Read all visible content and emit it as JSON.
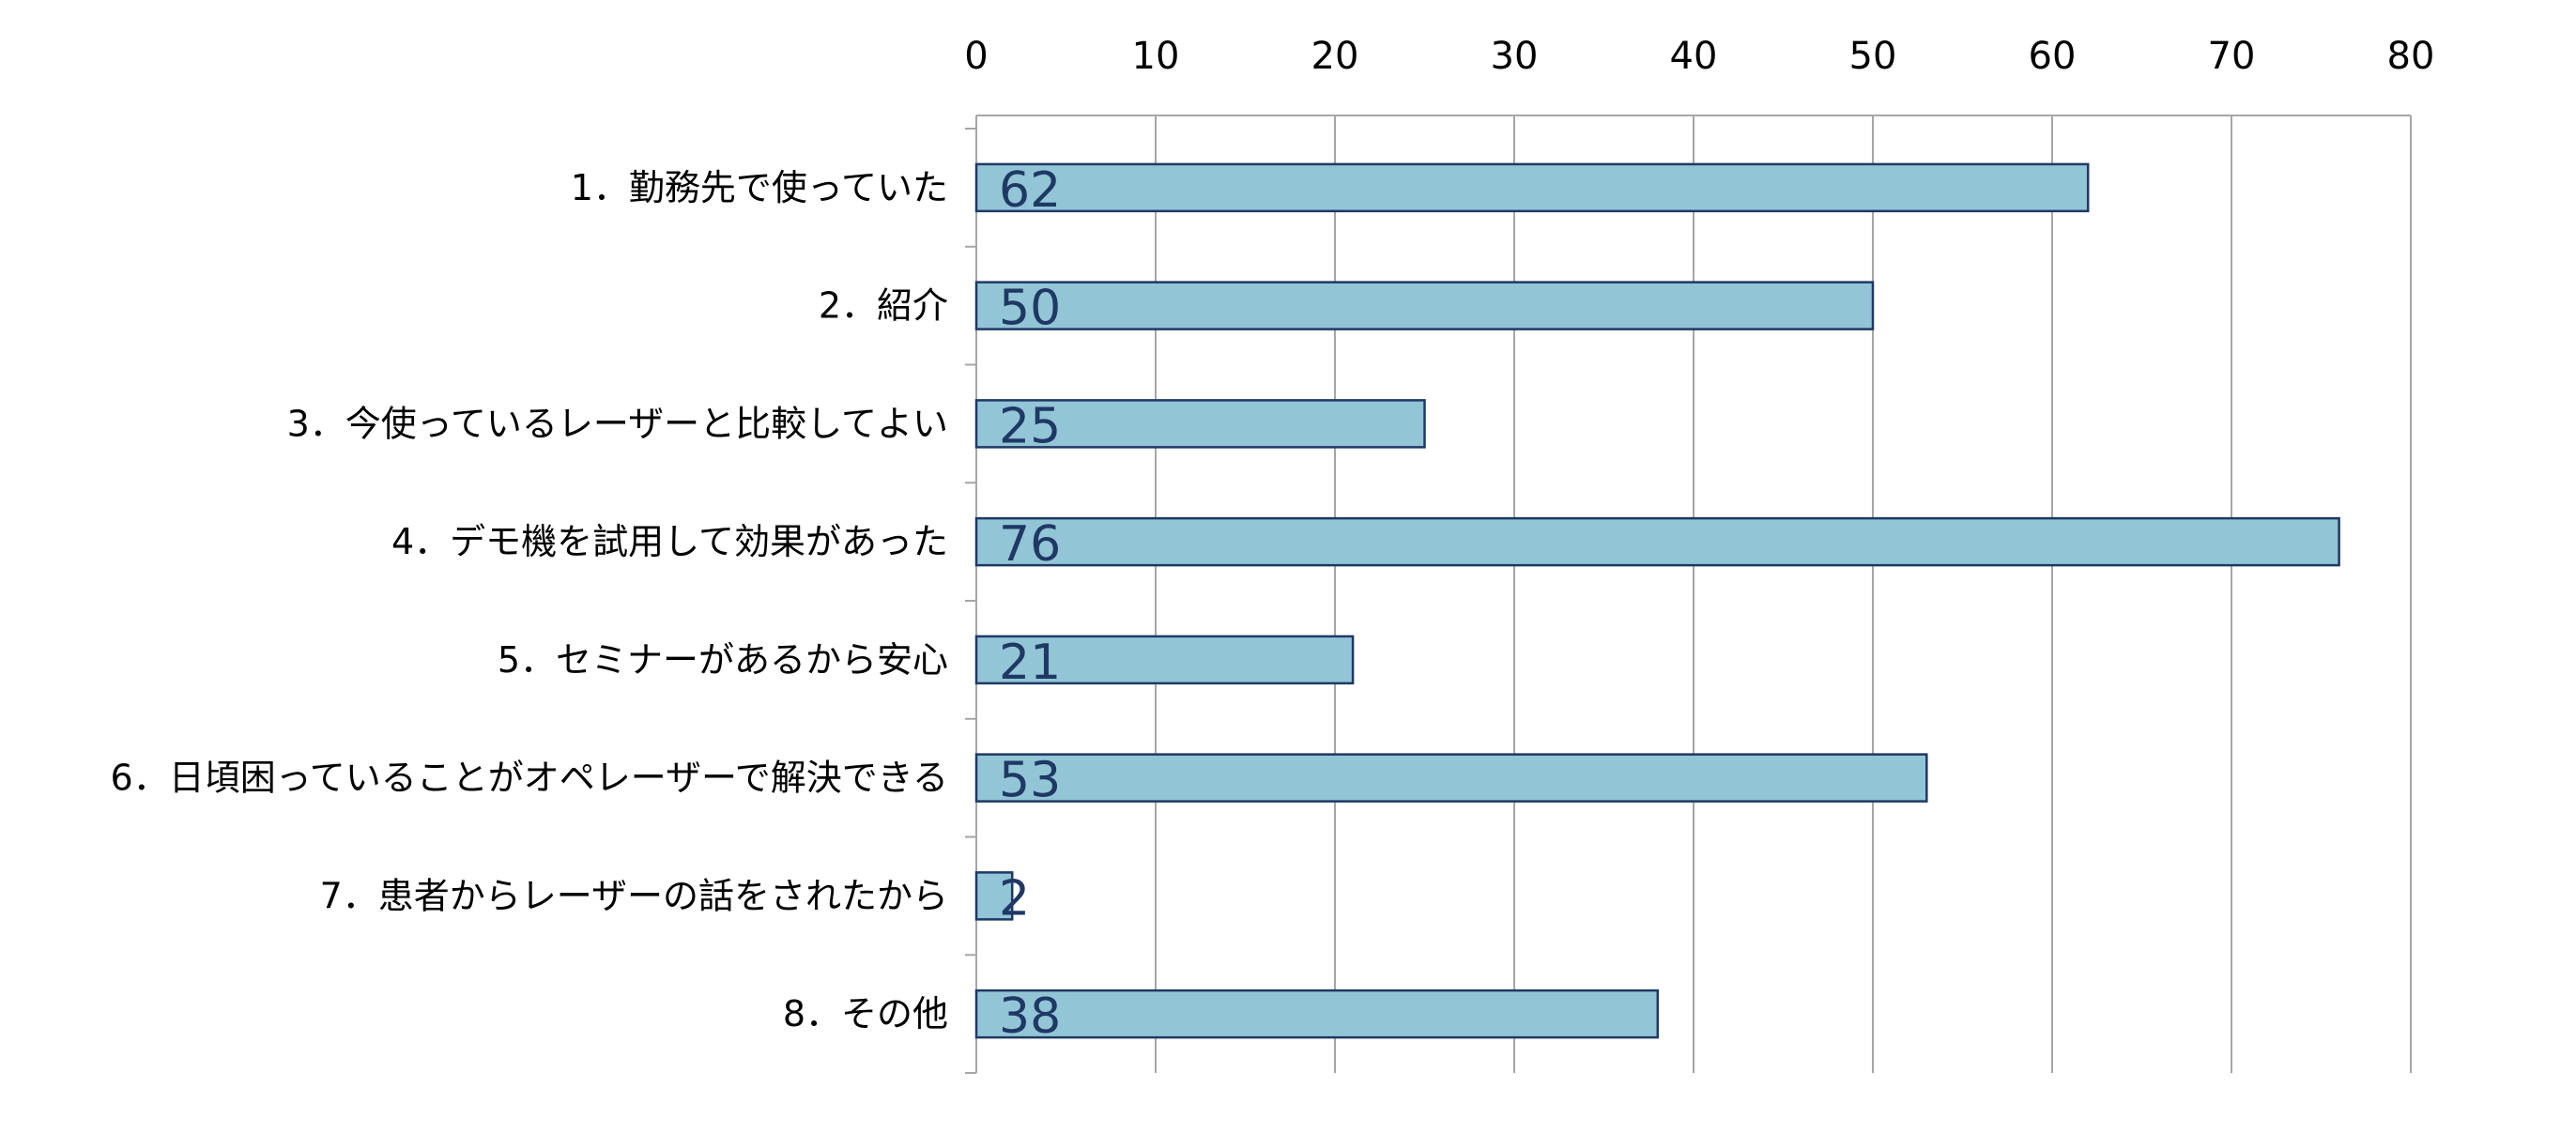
{
  "chart_data": {
    "type": "bar",
    "orientation": "horizontal",
    "categories": [
      "1．勤務先で使っていた",
      "2．紹介",
      "3．今使っているレーザーと比較してよい",
      "4．デモ機を試用して効果があった",
      "5．セミナーがあるから安心",
      "6．日頃困っていることがオペレーザーで解決できる",
      "7．患者からレーザーの話をされたから",
      "8．その他"
    ],
    "values": [
      62,
      50,
      25,
      76,
      21,
      53,
      2,
      38
    ],
    "data_labels": [
      "62",
      "50",
      "25",
      "76",
      "21",
      "53",
      "2",
      "38"
    ],
    "xlim": [
      0,
      80
    ],
    "xticks": [
      0,
      10,
      20,
      30,
      40,
      50,
      60,
      70,
      80
    ],
    "xtick_labels": [
      "0",
      "10",
      "20",
      "30",
      "40",
      "50",
      "60",
      "70",
      "80"
    ],
    "x_axis_position": "top",
    "grid": "vertical",
    "legend": "none",
    "title": "",
    "xlabel": "",
    "ylabel": "",
    "colors": {
      "bar_fill": "#92C5D6",
      "bar_stroke": "#1F3864",
      "gridline": "#A6A6A6",
      "axis": "#A6A6A6",
      "text": "#000000",
      "data_label": "#1F3864"
    }
  }
}
